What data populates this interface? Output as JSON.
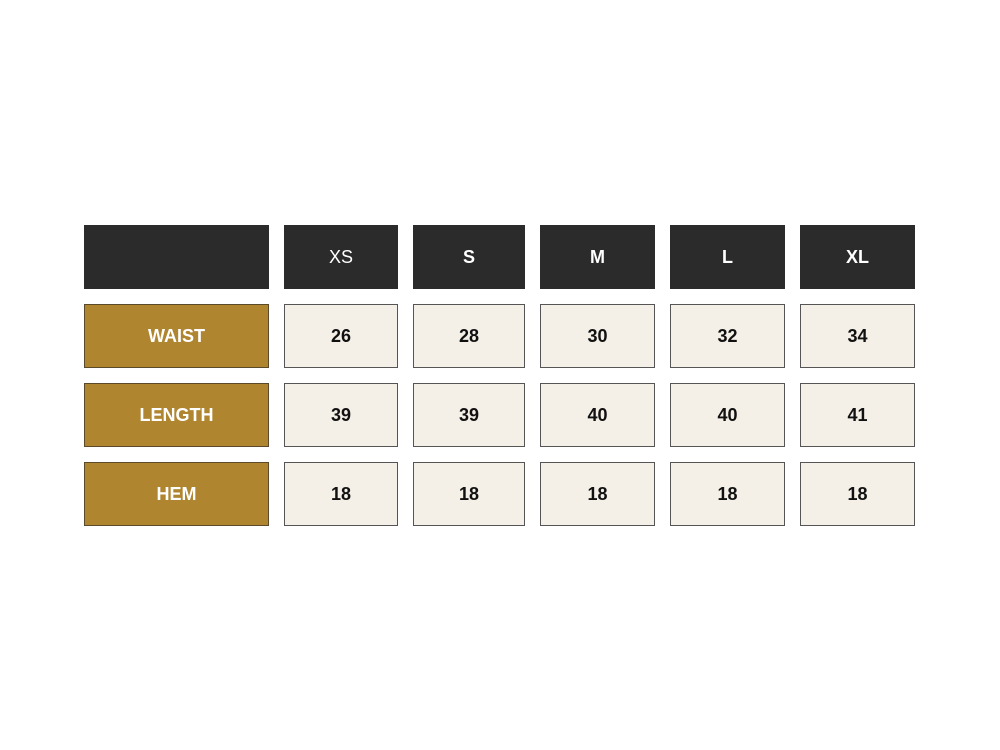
{
  "table": {
    "columns": [
      "XS",
      "S",
      "M",
      "L",
      "XL"
    ],
    "rows": [
      {
        "label": "WAIST",
        "values": [
          "26",
          "28",
          "30",
          "32",
          "34"
        ]
      },
      {
        "label": "LENGTH",
        "values": [
          "39",
          "39",
          "40",
          "40",
          "41"
        ]
      },
      {
        "label": "HEM",
        "values": [
          "18",
          "18",
          "18",
          "18",
          "18"
        ]
      }
    ]
  }
}
